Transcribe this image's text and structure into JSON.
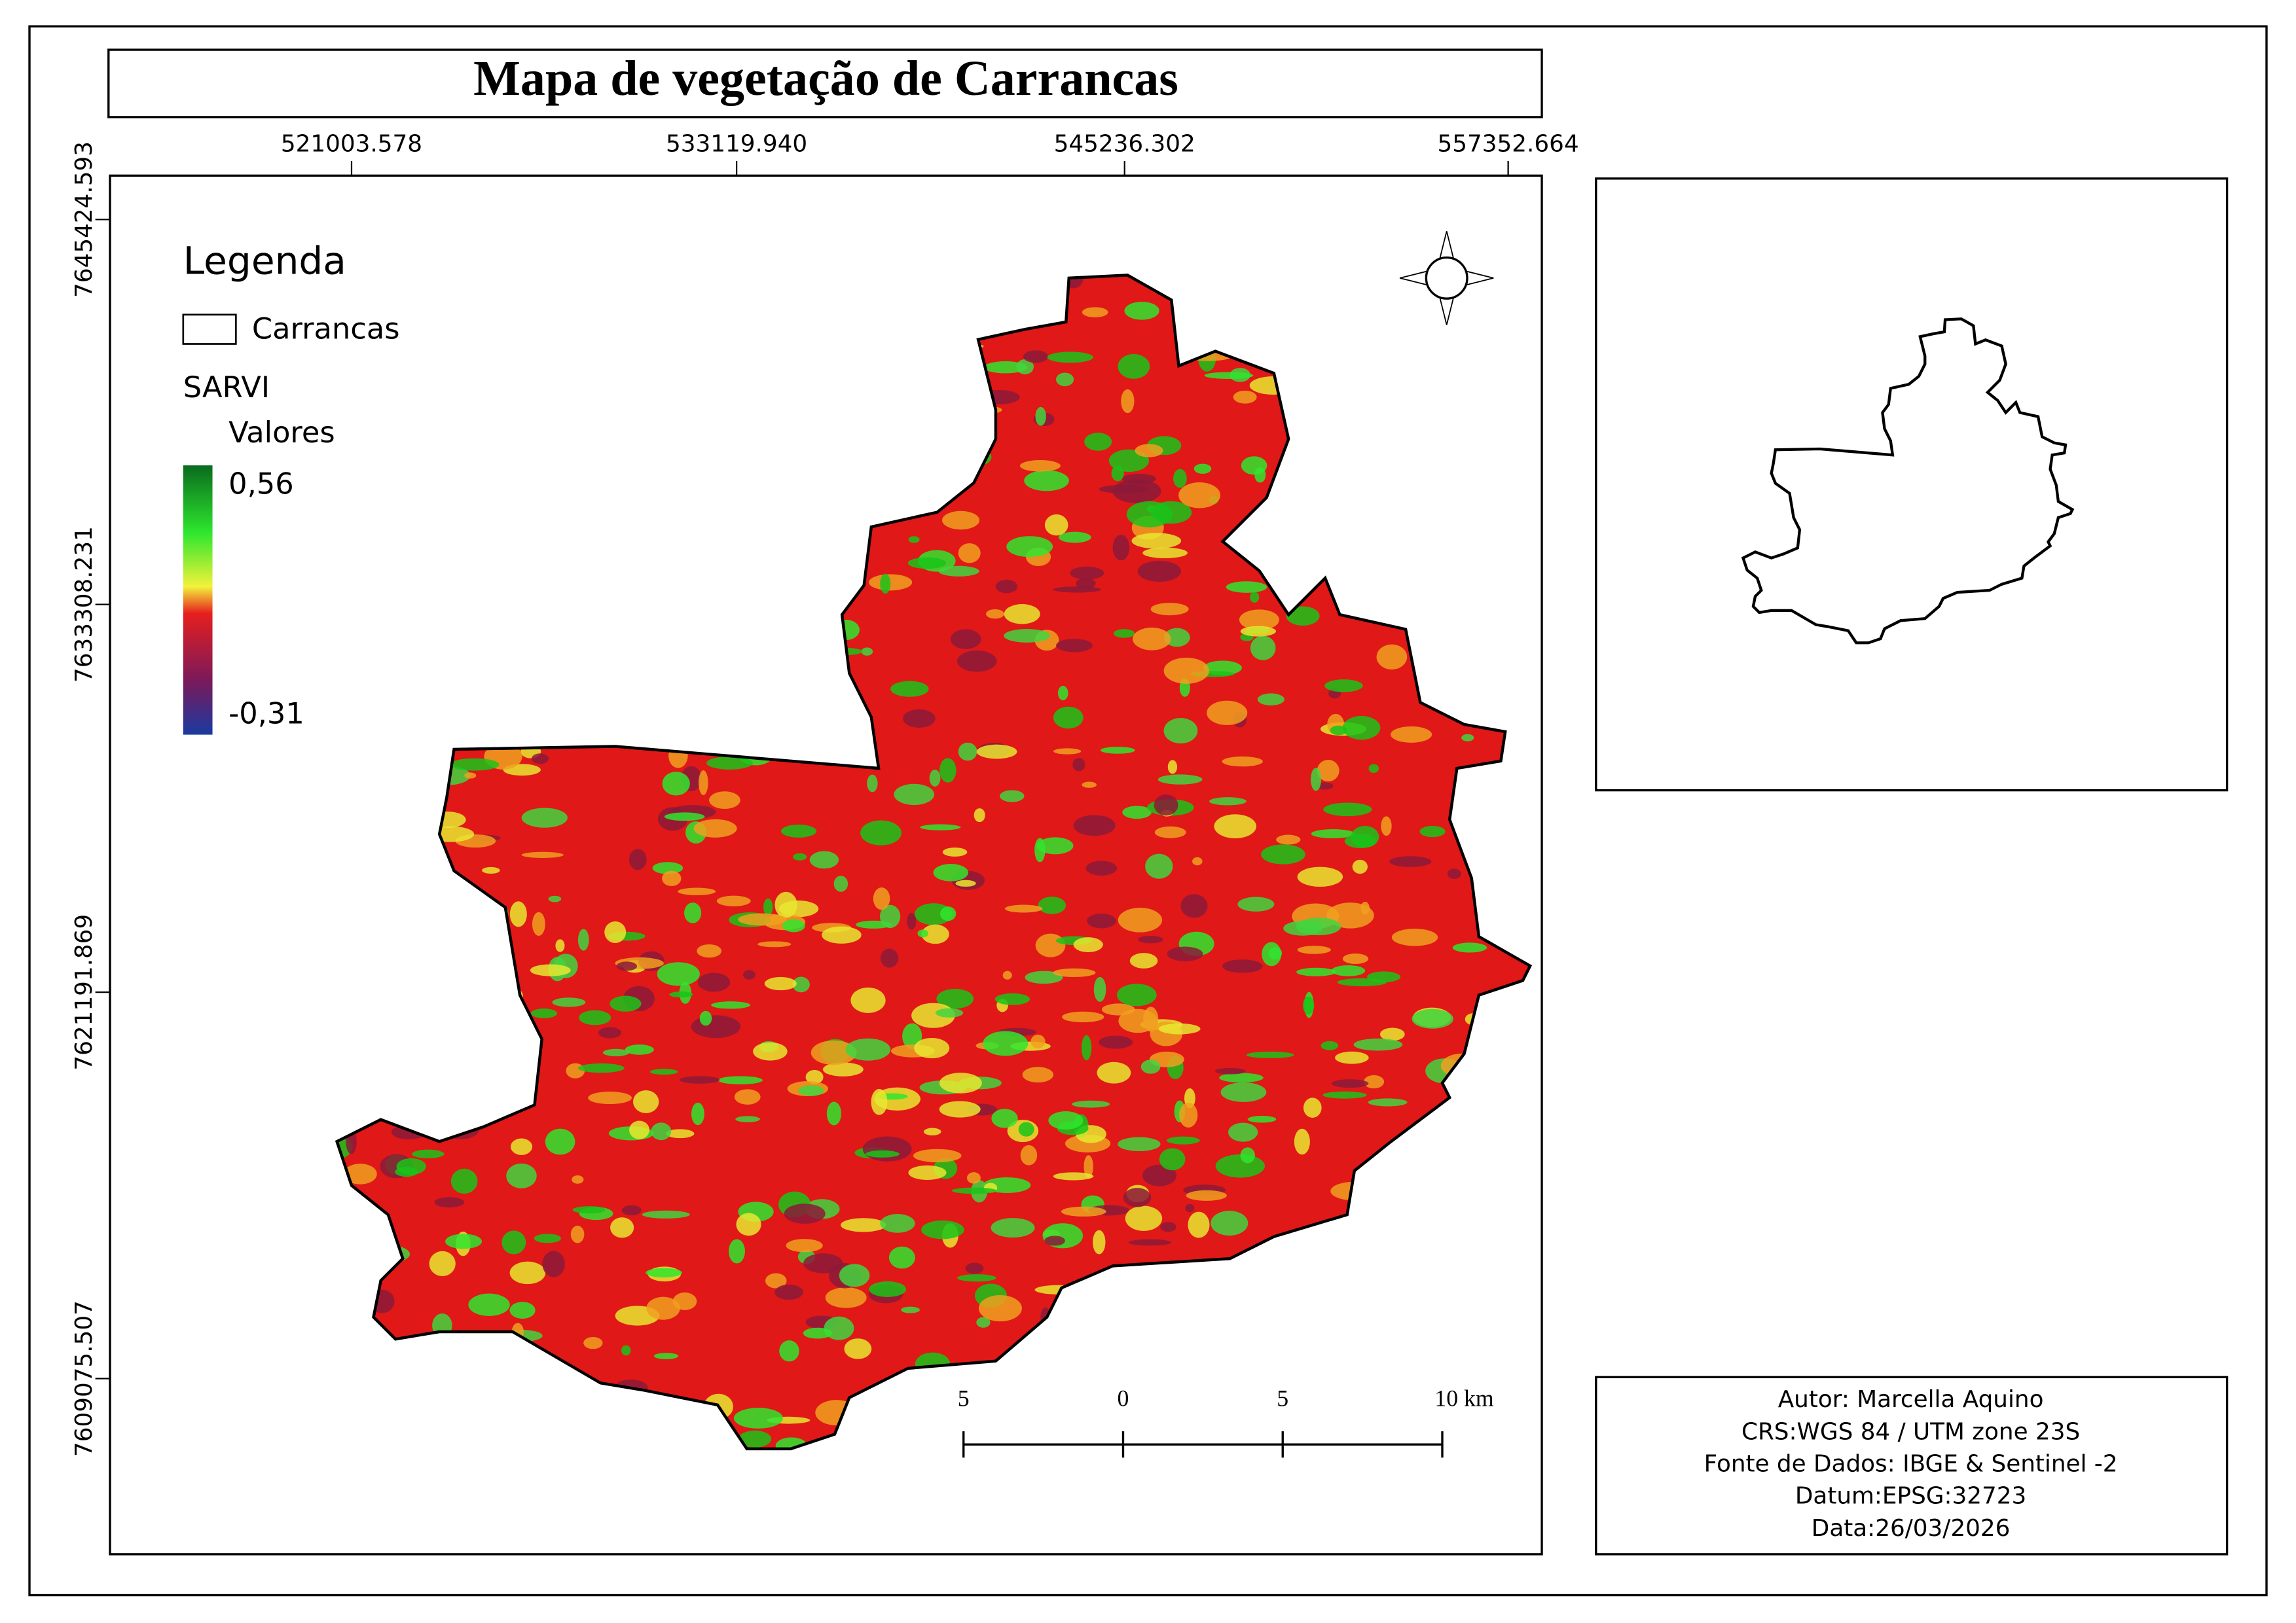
{
  "title": "Mapa de vegetação de Carrancas",
  "x_coords": [
    "521003.578",
    "533119.940",
    "545236.302",
    "557352.664"
  ],
  "y_coords": [
    "7645424.593",
    "7633308.231",
    "7621191.869",
    "7609075.507"
  ],
  "legend": {
    "title": "Legenda",
    "layer": "Carrancas",
    "raster": "SARVI",
    "subtitle": "Valores",
    "max": "0,56",
    "min": "-0,31"
  },
  "scale_bar": {
    "labels": [
      "5",
      "0",
      "5",
      "10 km"
    ]
  },
  "info": [
    "Autor: Marcella Aquino",
    "CRS:WGS 84 / UTM zone 23S",
    "Fonte de Dados: IBGE & Sentinel -2",
    "Datum:EPSG:32723",
    "Data:26/03/2026"
  ]
}
